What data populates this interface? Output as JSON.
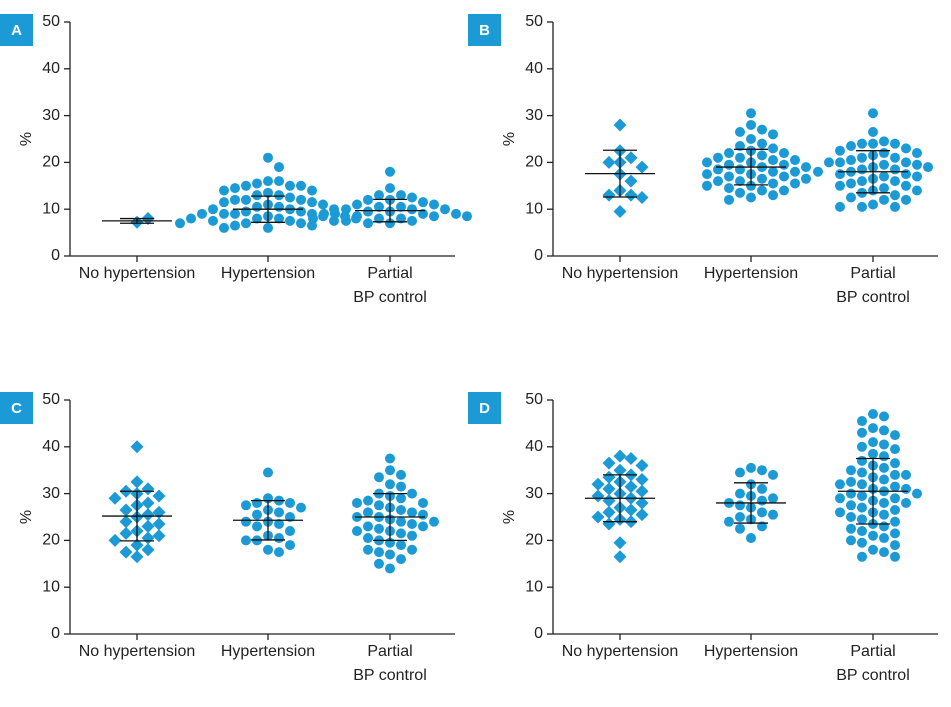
{
  "chart_data": [
    {
      "type": "dot",
      "panel": "A",
      "ylabel": "%",
      "ylim": [
        0,
        50
      ],
      "yticks": [
        0,
        10,
        20,
        30,
        40,
        50
      ],
      "color": "#1b9ad6",
      "groups": [
        {
          "name": [
            "No hypertension"
          ],
          "marker": "diamond",
          "values": [
            7.2,
            8.0
          ],
          "mean": 7.5,
          "sd": 0.5
        },
        {
          "name": [
            "Hypertension"
          ],
          "marker": "circle",
          "values": [
            21,
            19,
            16,
            16,
            15.5,
            15,
            15,
            15,
            14.5,
            14,
            14,
            13.5,
            13,
            13,
            12.5,
            12,
            12,
            12,
            11.5,
            11.5,
            11,
            11,
            10.5,
            10.5,
            10,
            10,
            10,
            9.5,
            9.5,
            9,
            9,
            9,
            9,
            8.5,
            8.5,
            8.5,
            8,
            8,
            8,
            8,
            7.5,
            7.5,
            7.5,
            7,
            7,
            7,
            6.5,
            6.5,
            6,
            6
          ],
          "mean": 10,
          "sd": 2.8
        },
        {
          "name": [
            "Partial",
            "BP control"
          ],
          "marker": "circle",
          "values": [
            18,
            14.5,
            13,
            13,
            12.5,
            12,
            12,
            11.5,
            11,
            11,
            10.5,
            10.5,
            10,
            10,
            10,
            9.5,
            9.5,
            9,
            9,
            9,
            9,
            8.5,
            8.5,
            8.5,
            8,
            8,
            8,
            7.5,
            7.5,
            7,
            7
          ],
          "mean": 9.7,
          "sd": 2.4
        }
      ]
    },
    {
      "type": "dot",
      "panel": "B",
      "ylabel": "%",
      "ylim": [
        0,
        50
      ],
      "yticks": [
        0,
        10,
        20,
        30,
        40,
        50
      ],
      "color": "#1b9ad6",
      "groups": [
        {
          "name": [
            "No hypertension"
          ],
          "marker": "diamond",
          "values": [
            28,
            22.5,
            21,
            20,
            20,
            19,
            17.5,
            16,
            14,
            13,
            13,
            12.5,
            9.5
          ],
          "mean": 17.6,
          "sd": 5
        },
        {
          "name": [
            "Hypertension"
          ],
          "marker": "circle",
          "values": [
            30.5,
            28,
            27,
            26.5,
            26,
            25,
            24,
            23.5,
            23,
            22.5,
            22,
            22,
            21.5,
            21,
            21,
            20.5,
            20.5,
            20,
            20,
            19.5,
            19.5,
            19,
            19,
            18.5,
            18.5,
            18,
            18,
            17.5,
            17.5,
            17,
            17,
            16.5,
            16.5,
            16,
            16,
            15.5,
            15.5,
            15,
            15,
            14.5,
            14,
            14,
            13.5,
            13,
            12.5,
            12
          ],
          "mean": 19,
          "sd": 3.8
        },
        {
          "name": [
            "Partial",
            "BP control"
          ],
          "marker": "circle",
          "values": [
            30.5,
            26.5,
            24.5,
            24,
            24,
            24,
            23.5,
            23,
            22.5,
            22,
            22,
            21.5,
            21,
            21,
            20.5,
            20,
            20,
            20,
            19.5,
            19.5,
            19,
            19,
            18.5,
            18.5,
            18,
            18,
            17.5,
            17.5,
            17,
            17,
            16.5,
            16,
            16,
            15.5,
            15,
            15,
            14.5,
            14,
            14,
            13.5,
            13,
            12.5,
            12,
            12,
            11,
            10.5,
            10.5,
            10.5
          ],
          "mean": 18,
          "sd": 4.5
        }
      ]
    },
    {
      "type": "dot",
      "panel": "C",
      "ylabel": "%",
      "ylim": [
        0,
        50
      ],
      "yticks": [
        0,
        10,
        20,
        30,
        40,
        50
      ],
      "color": "#1b9ad6",
      "groups": [
        {
          "name": [
            "No hypertension"
          ],
          "marker": "diamond",
          "values": [
            40,
            32.5,
            31,
            30.5,
            30,
            29.5,
            29,
            28,
            27.5,
            26.5,
            26,
            25.5,
            25,
            24,
            23.5,
            23,
            22,
            21.5,
            21,
            20.5,
            20,
            19,
            18,
            17.5,
            16.5
          ],
          "mean": 25.2,
          "sd": 5.3
        },
        {
          "name": [
            "Hypertension"
          ],
          "marker": "circle",
          "values": [
            34.5,
            29,
            28.5,
            28,
            28,
            27.5,
            27,
            26.5,
            26,
            25.5,
            25,
            24,
            24,
            23.5,
            23,
            22,
            21,
            20.5,
            20,
            20,
            19,
            18,
            17.5
          ],
          "mean": 24.3,
          "sd": 4.2
        },
        {
          "name": [
            "Partial",
            "BP control"
          ],
          "marker": "circle",
          "values": [
            37.5,
            35,
            34,
            33.5,
            32,
            31.5,
            30,
            30,
            29.5,
            29,
            28.5,
            28,
            28,
            27.5,
            27,
            26.5,
            26,
            26,
            25.5,
            25,
            25,
            24.5,
            24,
            24,
            23.5,
            23,
            23,
            22.5,
            22,
            22,
            21.5,
            21,
            20.5,
            20,
            19.5,
            19,
            18,
            18,
            17.5,
            17,
            16,
            15,
            14
          ],
          "mean": 25,
          "sd": 5
        }
      ]
    },
    {
      "type": "dot",
      "panel": "D",
      "ylabel": "%",
      "ylim": [
        0,
        50
      ],
      "yticks": [
        0,
        10,
        20,
        30,
        40,
        50
      ],
      "color": "#1b9ad6",
      "groups": [
        {
          "name": [
            "No hypertension"
          ],
          "marker": "diamond",
          "values": [
            38,
            37.5,
            36.5,
            36,
            35,
            34,
            33.5,
            33,
            32.5,
            32,
            31.5,
            31,
            30.5,
            30,
            29.5,
            29,
            28.5,
            28,
            27,
            26.5,
            26,
            25.5,
            25,
            24.5,
            24,
            23.5,
            19.5,
            16.5
          ],
          "mean": 29,
          "sd": 5
        },
        {
          "name": [
            "Hypertension"
          ],
          "marker": "circle",
          "values": [
            35.5,
            35,
            34.5,
            34,
            32,
            31,
            30,
            29.5,
            29,
            28.5,
            28,
            27.5,
            27,
            26,
            25.5,
            25,
            24.5,
            24,
            23,
            22.5,
            20.5
          ],
          "mean": 28,
          "sd": 4.3
        },
        {
          "name": [
            "Partial",
            "BP control"
          ],
          "marker": "circle",
          "values": [
            47,
            46.5,
            45.5,
            44,
            43.5,
            43,
            42.5,
            41,
            40.5,
            40,
            39.5,
            38.5,
            38,
            37,
            36.5,
            36,
            35.5,
            35,
            34.5,
            34,
            34,
            33.5,
            33,
            32.5,
            32,
            32,
            31.5,
            31,
            31,
            30.5,
            30,
            30,
            29.5,
            29,
            29,
            28.5,
            28,
            28,
            27.5,
            27,
            26.5,
            26,
            26,
            25.5,
            25,
            24.5,
            24,
            23.5,
            23,
            22.5,
            22,
            21.5,
            21,
            20.5,
            20,
            19.5,
            19,
            18,
            17.5,
            16.5,
            16.5
          ],
          "mean": 30.5,
          "sd": 7
        }
      ]
    }
  ]
}
